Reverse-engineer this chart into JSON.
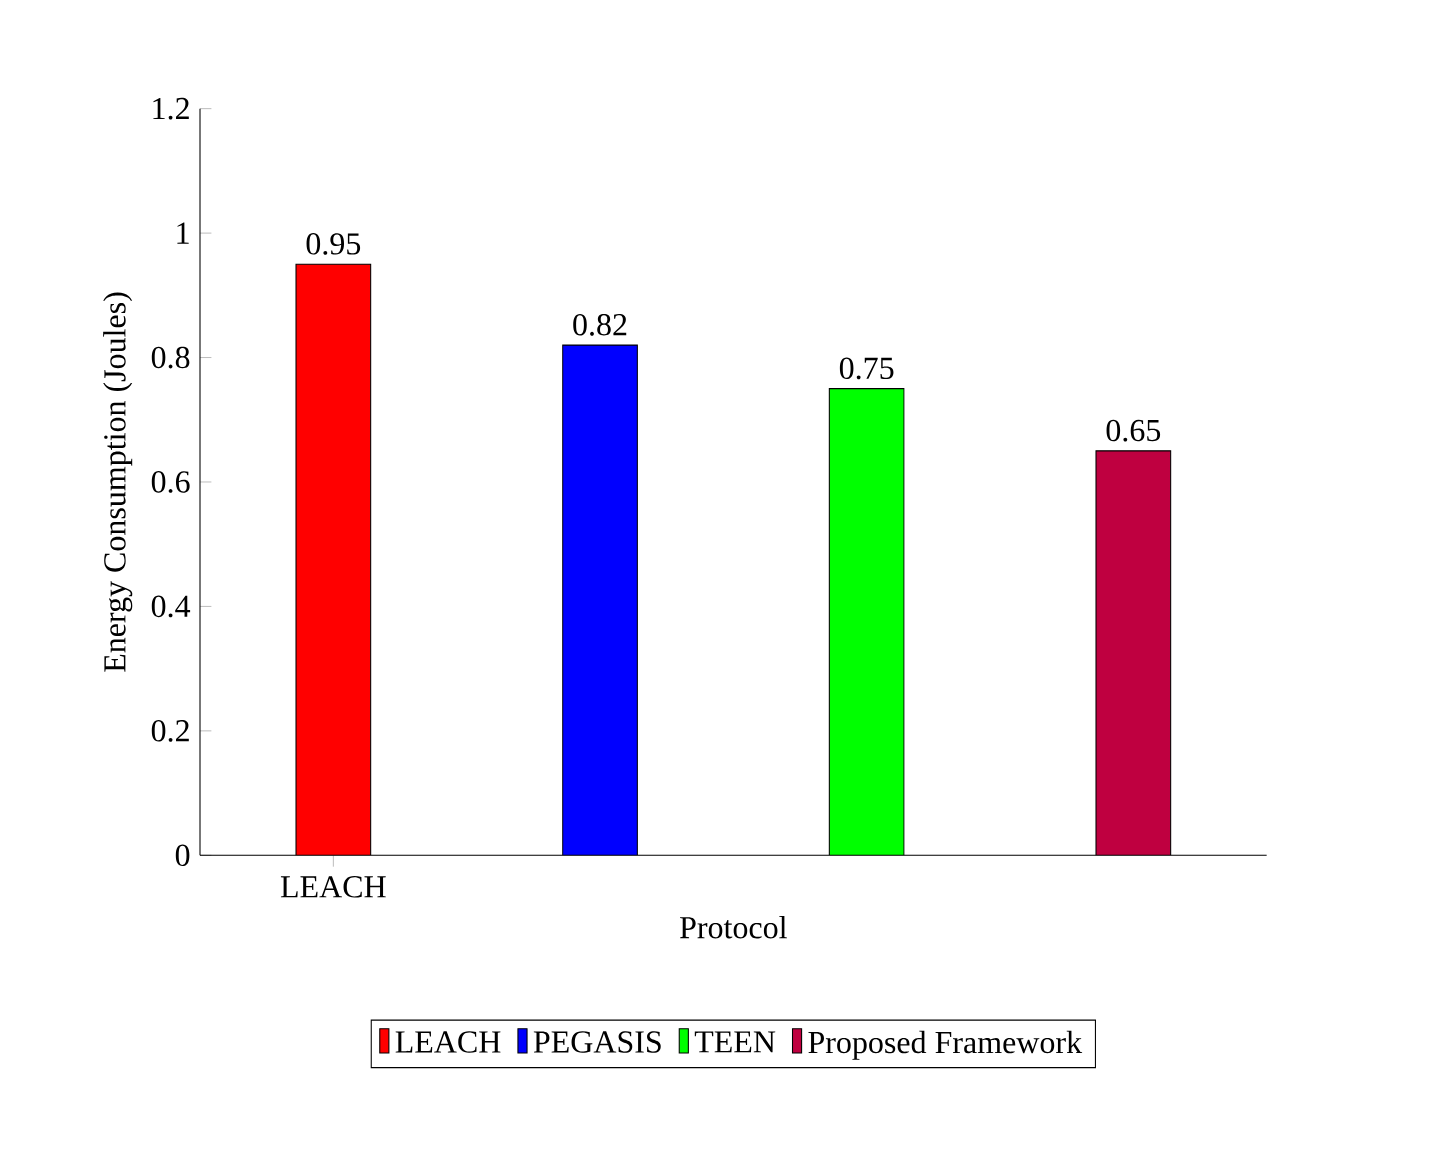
{
  "chart_data": {
    "type": "bar",
    "xlabel": "Protocol",
    "ylabel": "Energy Consumption (Joules)",
    "categories": [
      "LEACH",
      null,
      null,
      null
    ],
    "series": [
      {
        "name": "LEACH",
        "color": "#ff0000",
        "values": [
          0.95,
          null,
          null,
          null
        ],
        "value_labels": [
          "0.95",
          null,
          null,
          null
        ]
      },
      {
        "name": "PEGASIS",
        "color": "#0000ff",
        "values": [
          null,
          0.82,
          null,
          null
        ],
        "value_labels": [
          null,
          "0.82",
          null,
          null
        ]
      },
      {
        "name": "TEEN",
        "color": "#00ff00",
        "values": [
          null,
          null,
          0.75,
          null
        ],
        "value_labels": [
          null,
          null,
          "0.75",
          null
        ]
      },
      {
        "name": "Proposed Framework",
        "color": "#bf0040",
        "values": [
          null,
          null,
          null,
          0.65
        ],
        "value_labels": [
          null,
          null,
          null,
          "0.65"
        ]
      }
    ],
    "ylim": [
      0,
      1.2
    ],
    "yticks": [
      0,
      0.2,
      0.4,
      0.6,
      0.8,
      1,
      1.2
    ],
    "legend": "bottom"
  }
}
